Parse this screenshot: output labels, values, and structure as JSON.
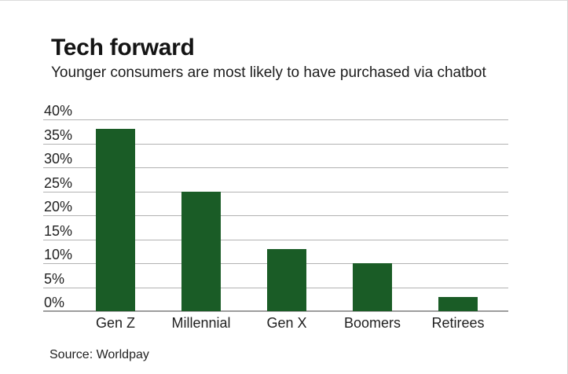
{
  "page": {
    "title": "Tech forward",
    "subtitle": "Younger consumers are most likely to have purchased via chatbot",
    "source": "Source: Worldpay"
  },
  "colors": {
    "bar": "#1a5c26",
    "gridline": "#b2b2b2",
    "axis_line": "#9d9d9d",
    "text": "#1c1c1c",
    "frame_border": "#d9d9d9"
  },
  "chart_data": {
    "type": "bar",
    "title": "Tech forward",
    "subtitle": "Younger consumers are most likely to have purchased via chatbot",
    "source": "Source: Worldpay",
    "categories": [
      "Gen Z",
      "Millennial",
      "Gen X",
      "Boomers",
      "Retirees"
    ],
    "values": [
      38,
      25,
      13,
      10,
      3
    ],
    "xlabel": "",
    "ylabel": "",
    "ylim": [
      0,
      40
    ],
    "yticks": [
      0,
      5,
      10,
      15,
      20,
      25,
      30,
      35,
      40
    ],
    "ytick_suffix": "%",
    "grid": true,
    "legend": false,
    "bar_color": "#1a5c26"
  }
}
